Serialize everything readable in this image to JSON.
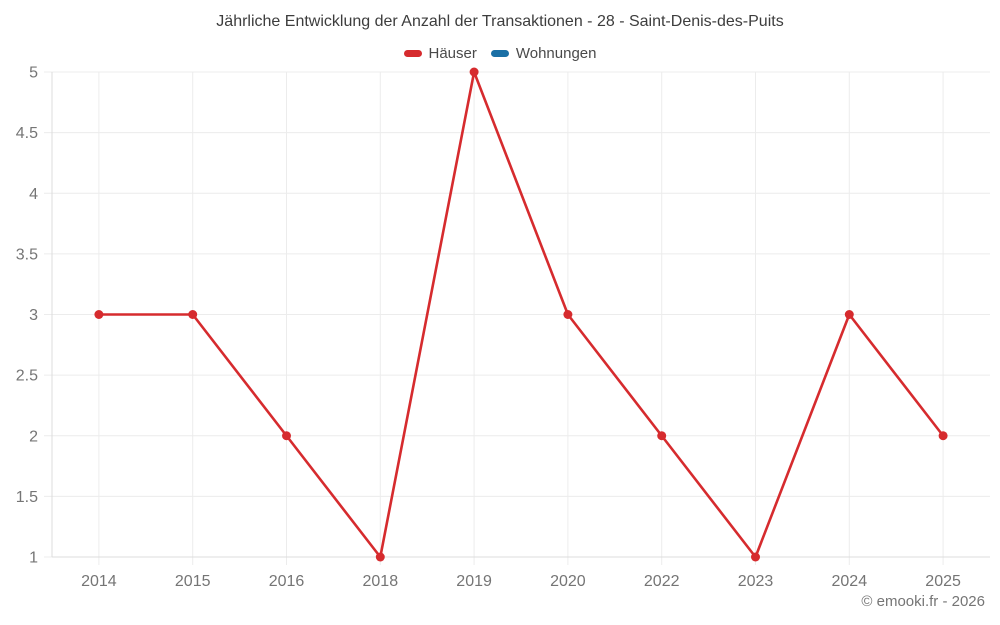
{
  "header": {
    "title": "Jährliche Entwicklung der Anzahl der Transaktionen - 28 - Saint-Denis-des-Puits"
  },
  "legend": {
    "items": [
      {
        "label": "Häuser",
        "color": "#d62b2e"
      },
      {
        "label": "Wohnungen",
        "color": "#1a6fa5"
      }
    ]
  },
  "footer": {
    "credit": "© emooki.fr - 2026"
  },
  "chart_data": {
    "type": "line",
    "title": "Jährliche Entwicklung der Anzahl der Transaktionen - 28 - Saint-Denis-des-Puits",
    "categories": [
      "2014",
      "2015",
      "2016",
      "2018",
      "2019",
      "2020",
      "2022",
      "2023",
      "2024",
      "2025"
    ],
    "series": [
      {
        "name": "Häuser",
        "color": "#d62b2e",
        "values": [
          3,
          3,
          2,
          1,
          5,
          3,
          2,
          1,
          3,
          2
        ]
      }
    ],
    "legend_entries": [
      "Häuser",
      "Wohnungen"
    ],
    "xlabel": "",
    "ylabel": "",
    "ylim": [
      1,
      5
    ],
    "yticks": [
      1,
      1.5,
      2,
      2.5,
      3,
      3.5,
      4,
      4.5,
      5
    ],
    "grid": true,
    "legend_position": "top",
    "colors": {
      "grid": "#ececec",
      "axis": "#dcdcdc",
      "tick_label": "#757575"
    }
  }
}
